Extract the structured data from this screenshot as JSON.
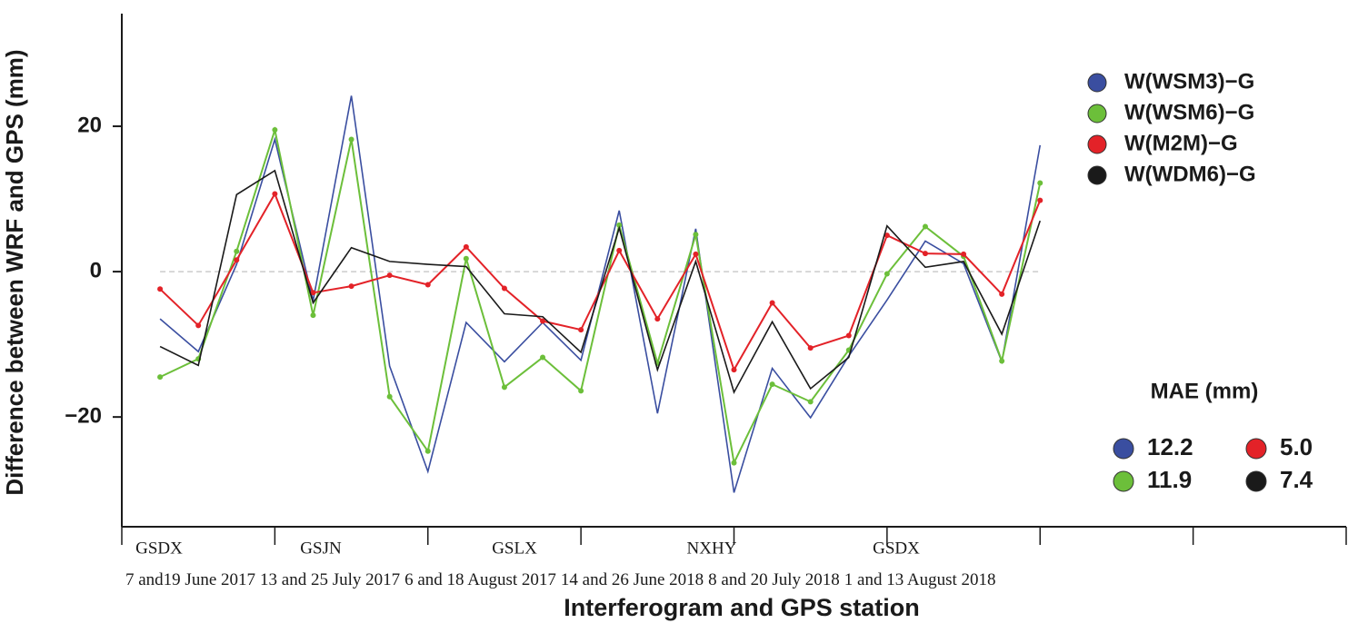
{
  "chart_data": {
    "type": "line",
    "y_label": "Difference between WRF and GPS (mm)",
    "x_label": "Interferogram and GPS station",
    "x": [
      0,
      1,
      2,
      3,
      4,
      5,
      6,
      7,
      8,
      9,
      10,
      11,
      12,
      13,
      14,
      15,
      16,
      17,
      18,
      19,
      20,
      21,
      22,
      23
    ],
    "xlim": [
      -1,
      31
    ],
    "group_boundaries": [
      -1,
      3,
      7,
      11,
      15,
      19,
      23,
      27,
      31
    ],
    "stations": [
      "GSDX",
      "GSJN",
      "GSLX",
      "NXHY",
      "GSDX"
    ],
    "dates": [
      "7 and19 June 2017",
      "13 and 25 July 2017",
      "6 and 18 August 2017",
      "14 and 26 June 2018",
      "8 and 20 July 2018",
      "1 and 13 August 2018"
    ],
    "ylim": [
      -35.1,
      35.5
    ],
    "yticks": [
      {
        "value": -20,
        "label": "−20"
      },
      0,
      20
    ],
    "reference_line": 0,
    "mae_title": "MAE (mm)",
    "series": [
      {
        "name": "W(WSM3)−G",
        "color": "#3a4ea0",
        "markers": false,
        "mae": 12.2,
        "mae_label": "12.2",
        "values": [
          -6.5,
          -11,
          1,
          18.2,
          -4,
          24.2,
          -13,
          -27.5,
          -7,
          -12.4,
          -7,
          -12.2,
          8.4,
          -19.5,
          5.9,
          -30.4,
          -13.3,
          -20.1,
          -11.6,
          -3.9,
          4.2,
          1.1,
          -12.4,
          17.4
        ]
      },
      {
        "name": "W(WSM6)−G",
        "color": "#6cbf3a",
        "markers": true,
        "mae": 11.9,
        "mae_label": "11.9",
        "values": [
          -14.5,
          -12,
          2.8,
          19.5,
          -6,
          18.2,
          -17.2,
          -24.7,
          1.8,
          -15.9,
          -11.8,
          -16.4,
          6.4,
          -12.6,
          5.1,
          -26.3,
          -15.5,
          -17.9,
          -10.8,
          -0.3,
          6.2,
          2.1,
          -12.3,
          12.2
        ]
      },
      {
        "name": "W(M2M)−G",
        "color": "#e32228",
        "markers": true,
        "mae": 5,
        "mae_label": "5.0",
        "values": [
          -2.4,
          -7.4,
          1.6,
          10.7,
          -2.9,
          -2,
          -0.5,
          -1.8,
          3.4,
          -2.3,
          -6.8,
          -8,
          2.9,
          -6.5,
          2.4,
          -13.5,
          -4.3,
          -10.5,
          -8.8,
          5,
          2.5,
          2.4,
          -3.1,
          9.8
        ]
      },
      {
        "name": "W(WDM6)−G",
        "color": "#1a1a1a",
        "markers": false,
        "mae": 7.4,
        "mae_label": "7.4",
        "values": [
          -10.3,
          -12.9,
          10.6,
          13.9,
          -4.3,
          3.3,
          1.4,
          1,
          0.7,
          -5.8,
          -6.2,
          -11.1,
          6,
          -13.5,
          1.4,
          -16.6,
          -6.9,
          -16.1,
          -11.8,
          6.3,
          0.6,
          1.4,
          -8.6,
          7
        ]
      }
    ]
  }
}
